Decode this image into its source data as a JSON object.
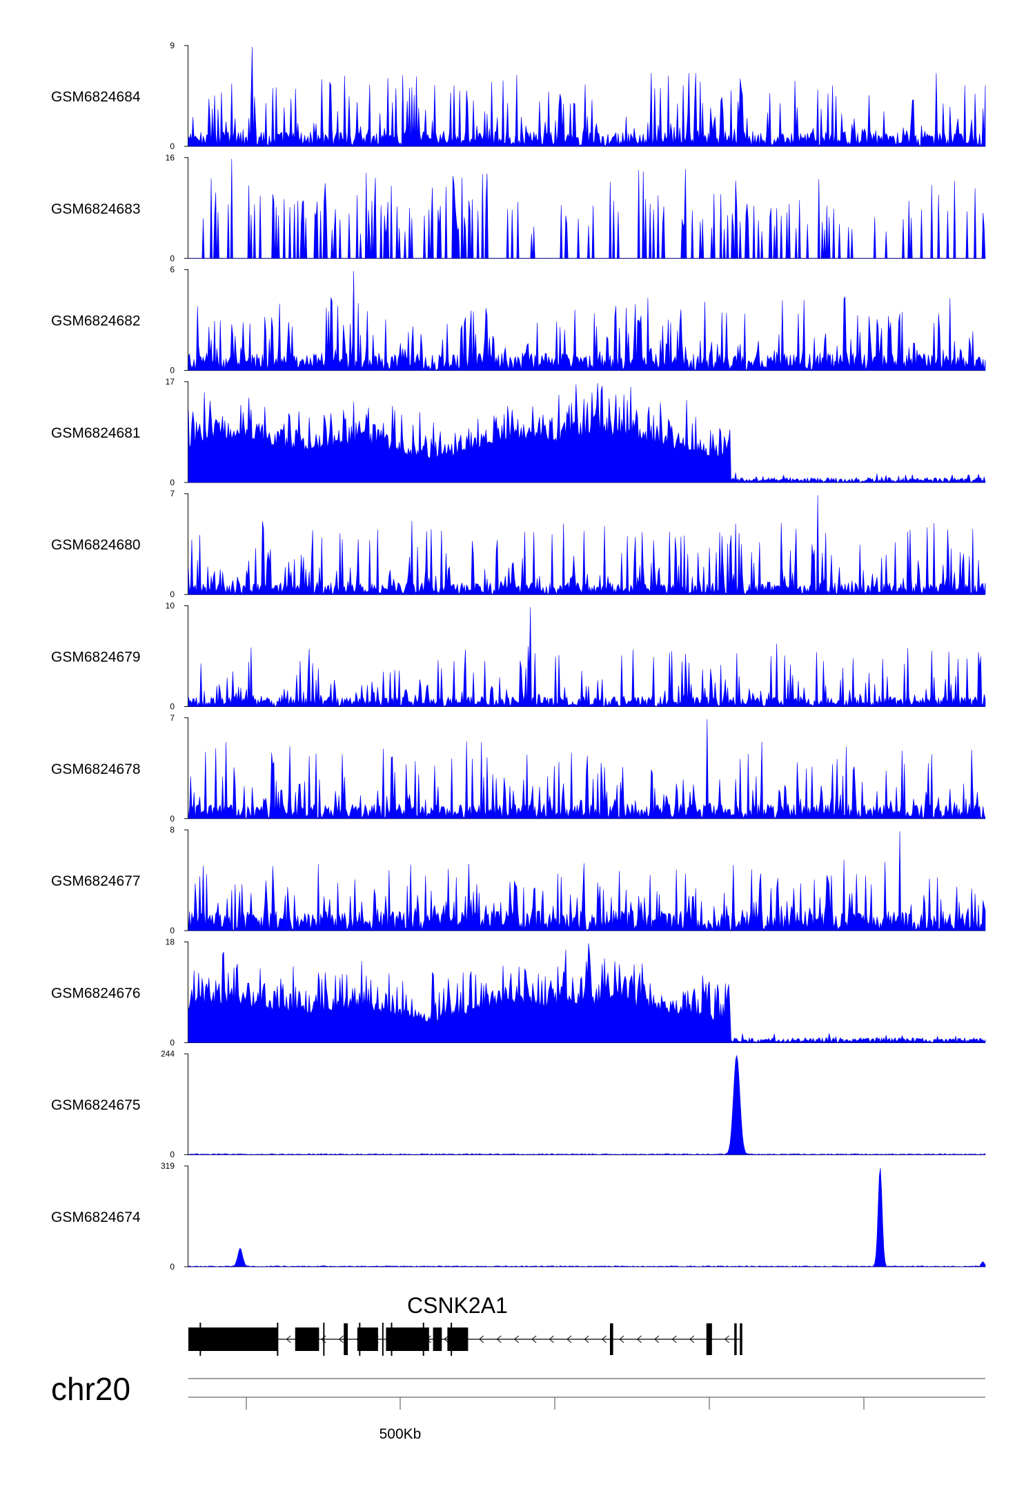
{
  "chart_data": {
    "type": "area",
    "title": "",
    "chromosome": "chr20",
    "x_axis": {
      "label_position": "500Kb",
      "tick_count": 5
    },
    "fill_color": "#0000ff",
    "tracks": [
      {
        "name": "GSM6824684",
        "ymax": "9",
        "ymin": "0",
        "profile": "spiky",
        "base": 0.15,
        "spike": 0.65,
        "peaks": []
      },
      {
        "name": "GSM6824683",
        "ymax": "16",
        "ymin": "0",
        "profile": "sparse",
        "base": 0.05,
        "spike": 0.6,
        "peaks": []
      },
      {
        "name": "GSM6824682",
        "ymax": "6",
        "ymin": "0",
        "profile": "spiky",
        "base": 0.18,
        "spike": 0.6,
        "peaks": []
      },
      {
        "name": "GSM6824681",
        "ymax": "17",
        "ymin": "0",
        "profile": "regional-broad",
        "base": 0.45,
        "spike": 0.35,
        "drop_at": 0.68,
        "peaks": []
      },
      {
        "name": "GSM6824680",
        "ymax": "7",
        "ymin": "0",
        "profile": "spiky",
        "base": 0.12,
        "spike": 0.65,
        "peaks": []
      },
      {
        "name": "GSM6824679",
        "ymax": "10",
        "ymin": "0",
        "profile": "spiky",
        "base": 0.1,
        "spike": 0.55,
        "peaks": []
      },
      {
        "name": "GSM6824678",
        "ymax": "7",
        "ymin": "0",
        "profile": "spiky",
        "base": 0.15,
        "spike": 0.65,
        "peaks": []
      },
      {
        "name": "GSM6824677",
        "ymax": "8",
        "ymin": "0",
        "profile": "spiky",
        "base": 0.2,
        "spike": 0.55,
        "peaks": []
      },
      {
        "name": "GSM6824676",
        "ymax": "18",
        "ymin": "0",
        "profile": "regional-broad",
        "base": 0.4,
        "spike": 0.35,
        "drop_at": 0.68,
        "peaks": []
      },
      {
        "name": "GSM6824675",
        "ymax": "244",
        "ymin": "0",
        "profile": "flat-peak",
        "base": 0.01,
        "spike": 0.0,
        "peaks": [
          {
            "pos": 0.688,
            "height": 1.0,
            "width": 0.004
          }
        ]
      },
      {
        "name": "GSM6824674",
        "ymax": "319",
        "ymin": "0",
        "profile": "flat-peak",
        "base": 0.01,
        "spike": 0.0,
        "peaks": [
          {
            "pos": 0.868,
            "height": 1.0,
            "width": 0.0025
          },
          {
            "pos": 0.065,
            "height": 0.18,
            "width": 0.003
          },
          {
            "pos": 0.997,
            "height": 0.05,
            "width": 0.002
          }
        ]
      }
    ],
    "gene": {
      "name": "CSNK2A1",
      "strand": "-",
      "span": [
        0.0,
        0.695
      ],
      "exons": [
        [
          0.0,
          0.112
        ],
        [
          0.134,
          0.164
        ],
        [
          0.195,
          0.2
        ],
        [
          0.212,
          0.238
        ],
        [
          0.248,
          0.302
        ],
        [
          0.307,
          0.318
        ],
        [
          0.325,
          0.351
        ],
        [
          0.529,
          0.533
        ],
        [
          0.65,
          0.657
        ],
        [
          0.685,
          0.688
        ],
        [
          0.692,
          0.695
        ]
      ]
    }
  }
}
